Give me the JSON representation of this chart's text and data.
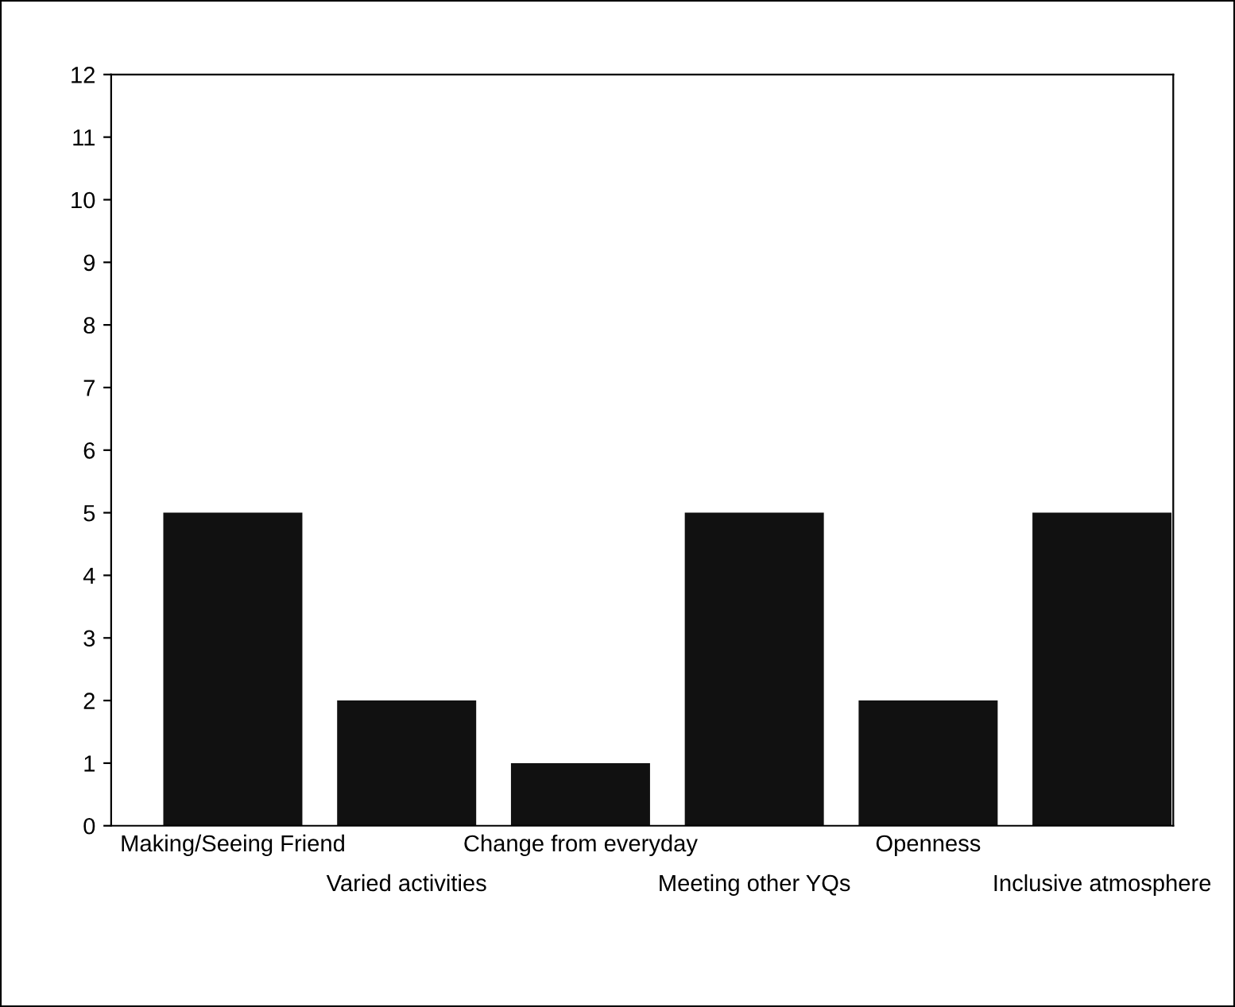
{
  "chart_data": {
    "type": "bar",
    "categories": [
      "Making/Seeing Friend",
      "Varied activities",
      "Change from everyday",
      "Meeting other YQs",
      "Openness",
      "Inclusive atmosphere"
    ],
    "values": [
      5,
      2,
      1,
      5,
      2,
      5
    ],
    "color": "#111111",
    "ylim": [
      0,
      12
    ],
    "yticks": [
      0,
      1,
      2,
      3,
      4,
      5,
      6,
      7,
      8,
      9,
      10,
      11,
      12
    ],
    "grid": false,
    "legend": false
  }
}
